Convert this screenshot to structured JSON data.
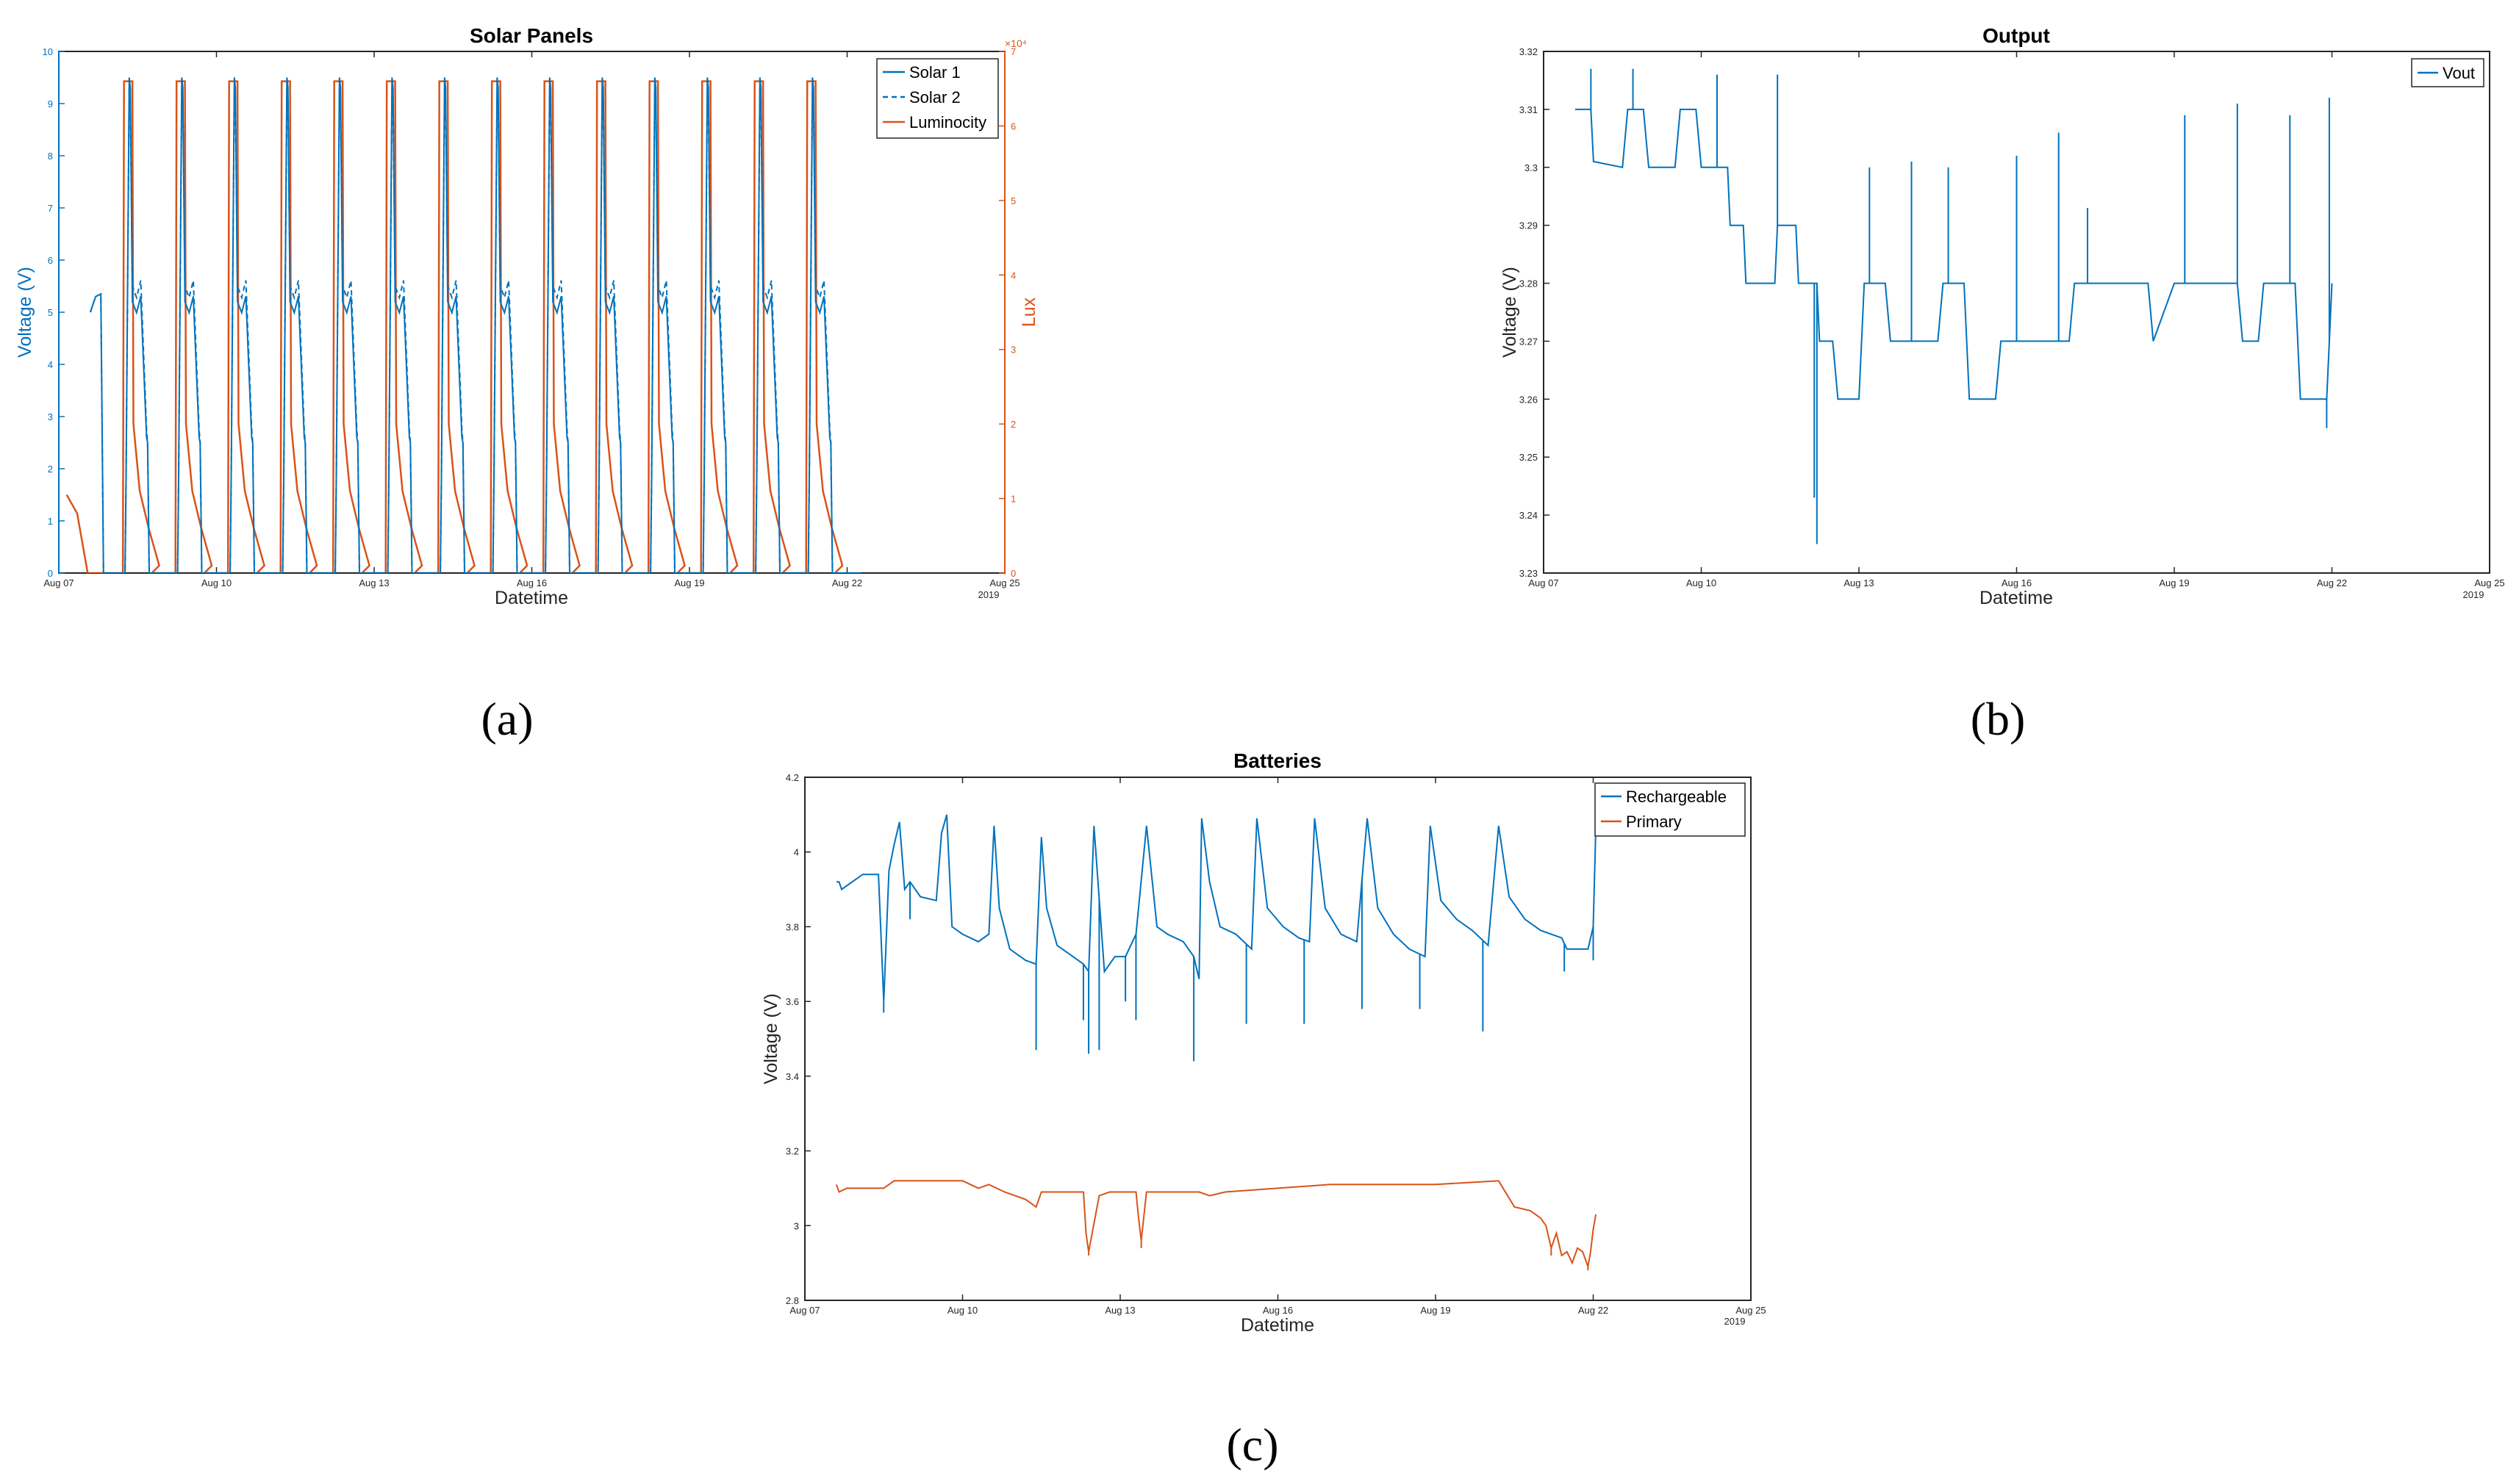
{
  "figure": {
    "panel_labels": [
      "(a)",
      "(b)",
      "(c)"
    ],
    "date_year": "2019"
  },
  "chart_data": [
    {
      "id": "solar",
      "type": "line",
      "title": "Solar Panels",
      "xlabel": "Datetime",
      "ylabel": "Voltage (V)",
      "y2label": "Lux",
      "y2_exponent": "×10⁴",
      "xlim": [
        0,
        18
      ],
      "x_ticks": [
        0,
        3,
        6,
        9,
        12,
        15,
        18
      ],
      "x_tick_labels": [
        "Aug 07",
        "Aug 10",
        "Aug 13",
        "Aug 16",
        "Aug 19",
        "Aug 22",
        "Aug 25"
      ],
      "x_year_label": "2019",
      "ylim": [
        0,
        10
      ],
      "y_ticks": [
        0,
        1,
        2,
        3,
        4,
        5,
        6,
        7,
        8,
        9,
        10
      ],
      "y2lim": [
        0,
        7
      ],
      "y2_ticks": [
        0,
        1,
        2,
        3,
        4,
        5,
        6,
        7
      ],
      "legend_location": "top-right",
      "colors": {
        "left_axis": "#0072BD",
        "right_axis": "#D95319"
      },
      "daily_pattern": {
        "days": [
          1,
          2,
          3,
          4,
          5,
          6,
          7,
          8,
          9,
          10,
          11,
          12,
          13,
          14
        ],
        "rise": 0.28,
        "peak": 0.36,
        "fall_to_zero": 0.72,
        "voltage_peak": 9.5,
        "voltage_shoulder": 5.3,
        "lux_peak": 6.6
      },
      "series": [
        {
          "name": "Solar 1",
          "axis": "left",
          "style": "solid",
          "color": "#0072BD",
          "x_range": [
            0.6,
            15.5
          ],
          "peak": 9.5,
          "night": 0
        },
        {
          "name": "Solar 2",
          "axis": "left",
          "style": "dashed",
          "color": "#0072BD",
          "x_range": [
            0.6,
            15.5
          ],
          "peak": 9.3,
          "night": 0
        },
        {
          "name": "Luminocity",
          "axis": "right",
          "style": "solid",
          "color": "#D95319",
          "x_range": [
            0.15,
            15.6
          ],
          "peak": 6.6,
          "night": 0
        }
      ]
    },
    {
      "id": "output",
      "type": "line",
      "title": "Output",
      "xlabel": "Datetime",
      "ylabel": "Voltage (V)",
      "xlim": [
        0,
        18
      ],
      "x_ticks": [
        0,
        3,
        6,
        9,
        12,
        15,
        18
      ],
      "x_tick_labels": [
        "Aug 07",
        "Aug 10",
        "Aug 13",
        "Aug 16",
        "Aug 19",
        "Aug 22",
        "Aug 25"
      ],
      "x_year_label": "2019",
      "ylim": [
        3.23,
        3.32
      ],
      "y_ticks": [
        3.23,
        3.24,
        3.25,
        3.26,
        3.27,
        3.28,
        3.29,
        3.3,
        3.31,
        3.32
      ],
      "y_tick_labels": [
        "3.23",
        "3.24",
        "3.25",
        "3.26",
        "3.27",
        "3.28",
        "3.29",
        "3.3",
        "3.31",
        "3.32"
      ],
      "legend_location": "top-right",
      "series": [
        {
          "name": "Vout",
          "color": "#0072BD",
          "points": [
            [
              0.6,
              3.31
            ],
            [
              0.9,
              3.31
            ],
            [
              0.95,
              3.301
            ],
            [
              1.5,
              3.3
            ],
            [
              1.6,
              3.31
            ],
            [
              1.9,
              3.31
            ],
            [
              2.0,
              3.3
            ],
            [
              2.5,
              3.3
            ],
            [
              2.6,
              3.31
            ],
            [
              2.9,
              3.31
            ],
            [
              3.0,
              3.3
            ],
            [
              3.5,
              3.3
            ],
            [
              3.55,
              3.29
            ],
            [
              3.8,
              3.29
            ],
            [
              3.85,
              3.28
            ],
            [
              4.4,
              3.28
            ],
            [
              4.45,
              3.29
            ],
            [
              4.8,
              3.29
            ],
            [
              4.85,
              3.28
            ],
            [
              5.2,
              3.28
            ],
            [
              5.25,
              3.27
            ],
            [
              5.5,
              3.27
            ],
            [
              5.6,
              3.26
            ],
            [
              6.0,
              3.26
            ],
            [
              6.1,
              3.28
            ],
            [
              6.5,
              3.28
            ],
            [
              6.6,
              3.27
            ],
            [
              7.5,
              3.27
            ],
            [
              7.6,
              3.28
            ],
            [
              8.0,
              3.28
            ],
            [
              8.1,
              3.26
            ],
            [
              8.6,
              3.26
            ],
            [
              8.7,
              3.27
            ],
            [
              9.0,
              3.27
            ],
            [
              9.2,
              3.27
            ],
            [
              10.0,
              3.27
            ],
            [
              10.1,
              3.28
            ],
            [
              11.5,
              3.28
            ],
            [
              11.6,
              3.27
            ],
            [
              12.0,
              3.28
            ],
            [
              13.2,
              3.28
            ],
            [
              13.3,
              3.27
            ],
            [
              13.6,
              3.27
            ],
            [
              13.7,
              3.28
            ],
            [
              14.3,
              3.28
            ],
            [
              14.4,
              3.26
            ],
            [
              14.9,
              3.26
            ],
            [
              15.0,
              3.28
            ]
          ],
          "spikes": [
            [
              0.9,
              3.317
            ],
            [
              1.7,
              3.317
            ],
            [
              2.4,
              3.3
            ],
            [
              3.3,
              3.316
            ],
            [
              4.45,
              3.316
            ],
            [
              5.15,
              3.243
            ],
            [
              5.2,
              3.235
            ],
            [
              6.2,
              3.3
            ],
            [
              7.0,
              3.301
            ],
            [
              7.7,
              3.3
            ],
            [
              9.0,
              3.302
            ],
            [
              9.8,
              3.306
            ],
            [
              10.35,
              3.293
            ],
            [
              12.2,
              3.309
            ],
            [
              13.2,
              3.311
            ],
            [
              14.2,
              3.309
            ],
            [
              14.95,
              3.312
            ],
            [
              14.9,
              3.255
            ]
          ]
        }
      ]
    },
    {
      "id": "batteries",
      "type": "line",
      "title": "Batteries",
      "xlabel": "Datetime",
      "ylabel": "Voltage (V)",
      "xlim": [
        0,
        18
      ],
      "x_ticks": [
        0,
        3,
        6,
        9,
        12,
        15,
        18
      ],
      "x_tick_labels": [
        "Aug 07",
        "Aug 10",
        "Aug 13",
        "Aug 16",
        "Aug 19",
        "Aug 22",
        "Aug 25"
      ],
      "x_year_label": "2019",
      "ylim": [
        2.8,
        4.2
      ],
      "y_ticks": [
        2.8,
        3.0,
        3.2,
        3.4,
        3.6,
        3.8,
        4.0,
        4.2
      ],
      "y_tick_labels": [
        "2.8",
        "3",
        "3.2",
        "3.4",
        "3.6",
        "3.8",
        "4",
        "4.2"
      ],
      "legend_location": "top-right",
      "series": [
        {
          "name": "Rechargeable",
          "color": "#0072BD",
          "points": [
            [
              0.6,
              3.92
            ],
            [
              0.65,
              3.92
            ],
            [
              0.7,
              3.9
            ],
            [
              1.1,
              3.94
            ],
            [
              1.4,
              3.94
            ],
            [
              1.5,
              3.6
            ],
            [
              1.6,
              3.95
            ],
            [
              1.7,
              4.02
            ],
            [
              1.8,
              4.08
            ],
            [
              1.9,
              3.9
            ],
            [
              2.0,
              3.92
            ],
            [
              2.2,
              3.88
            ],
            [
              2.5,
              3.87
            ],
            [
              2.6,
              4.05
            ],
            [
              2.7,
              4.1
            ],
            [
              2.8,
              3.8
            ],
            [
              3.0,
              3.78
            ],
            [
              3.3,
              3.76
            ],
            [
              3.5,
              3.78
            ],
            [
              3.6,
              4.07
            ],
            [
              3.7,
              3.85
            ],
            [
              3.9,
              3.74
            ],
            [
              4.2,
              3.71
            ],
            [
              4.4,
              3.7
            ],
            [
              4.5,
              4.04
            ],
            [
              4.6,
              3.85
            ],
            [
              4.8,
              3.75
            ],
            [
              5.1,
              3.72
            ],
            [
              5.3,
              3.7
            ],
            [
              5.4,
              3.68
            ],
            [
              5.5,
              4.07
            ],
            [
              5.7,
              3.68
            ],
            [
              5.9,
              3.72
            ],
            [
              6.1,
              3.72
            ],
            [
              6.3,
              3.78
            ],
            [
              6.5,
              4.07
            ],
            [
              6.7,
              3.8
            ],
            [
              6.9,
              3.78
            ],
            [
              7.2,
              3.76
            ],
            [
              7.4,
              3.72
            ],
            [
              7.5,
              3.66
            ],
            [
              7.55,
              4.09
            ],
            [
              7.7,
              3.92
            ],
            [
              7.9,
              3.8
            ],
            [
              8.2,
              3.78
            ],
            [
              8.5,
              3.74
            ],
            [
              8.6,
              4.09
            ],
            [
              8.8,
              3.85
            ],
            [
              9.1,
              3.8
            ],
            [
              9.4,
              3.77
            ],
            [
              9.6,
              3.76
            ],
            [
              9.7,
              4.09
            ],
            [
              9.9,
              3.85
            ],
            [
              10.2,
              3.78
            ],
            [
              10.5,
              3.76
            ],
            [
              10.7,
              4.09
            ],
            [
              10.9,
              3.85
            ],
            [
              11.2,
              3.78
            ],
            [
              11.5,
              3.74
            ],
            [
              11.8,
              3.72
            ],
            [
              11.9,
              4.07
            ],
            [
              12.1,
              3.87
            ],
            [
              12.4,
              3.82
            ],
            [
              12.7,
              3.79
            ],
            [
              13.0,
              3.75
            ],
            [
              13.2,
              4.07
            ],
            [
              13.4,
              3.88
            ],
            [
              13.7,
              3.82
            ],
            [
              14.0,
              3.79
            ],
            [
              14.4,
              3.77
            ],
            [
              14.5,
              3.74
            ],
            [
              14.6,
              3.74
            ],
            [
              14.9,
              3.74
            ],
            [
              15.0,
              3.8
            ],
            [
              15.05,
              4.07
            ]
          ],
          "spikes": [
            [
              1.5,
              3.57
            ],
            [
              2.0,
              3.82
            ],
            [
              4.4,
              3.47
            ],
            [
              5.3,
              3.55
            ],
            [
              5.4,
              3.46
            ],
            [
              5.6,
              3.47
            ],
            [
              6.1,
              3.6
            ],
            [
              6.3,
              3.55
            ],
            [
              7.4,
              3.44
            ],
            [
              8.4,
              3.54
            ],
            [
              9.5,
              3.54
            ],
            [
              10.6,
              3.58
            ],
            [
              11.7,
              3.58
            ],
            [
              12.9,
              3.52
            ],
            [
              14.45,
              3.68
            ],
            [
              15.0,
              3.71
            ]
          ]
        },
        {
          "name": "Primary",
          "color": "#D95319",
          "points": [
            [
              0.6,
              3.11
            ],
            [
              0.65,
              3.09
            ],
            [
              0.8,
              3.1
            ],
            [
              1.5,
              3.1
            ],
            [
              1.7,
              3.12
            ],
            [
              2.5,
              3.12
            ],
            [
              3.0,
              3.12
            ],
            [
              3.3,
              3.1
            ],
            [
              3.5,
              3.11
            ],
            [
              3.8,
              3.09
            ],
            [
              4.2,
              3.07
            ],
            [
              4.4,
              3.05
            ],
            [
              4.5,
              3.09
            ],
            [
              5.3,
              3.09
            ],
            [
              5.35,
              2.98
            ],
            [
              5.4,
              2.93
            ],
            [
              5.6,
              3.08
            ],
            [
              5.8,
              3.09
            ],
            [
              6.1,
              3.09
            ],
            [
              6.3,
              3.09
            ],
            [
              6.35,
              3.02
            ],
            [
              6.4,
              2.96
            ],
            [
              6.5,
              3.09
            ],
            [
              7.5,
              3.09
            ],
            [
              7.7,
              3.08
            ],
            [
              8.0,
              3.09
            ],
            [
              9.0,
              3.1
            ],
            [
              10.0,
              3.11
            ],
            [
              12.0,
              3.11
            ],
            [
              13.2,
              3.12
            ],
            [
              13.5,
              3.05
            ],
            [
              13.8,
              3.04
            ],
            [
              14.0,
              3.02
            ],
            [
              14.1,
              3.0
            ],
            [
              14.2,
              2.94
            ],
            [
              14.3,
              2.98
            ],
            [
              14.4,
              2.92
            ],
            [
              14.5,
              2.93
            ],
            [
              14.6,
              2.9
            ],
            [
              14.7,
              2.94
            ],
            [
              14.8,
              2.93
            ],
            [
              14.9,
              2.89
            ],
            [
              14.95,
              2.93
            ],
            [
              15.0,
              2.99
            ],
            [
              15.05,
              3.03
            ]
          ],
          "spikes": [
            [
              5.4,
              2.92
            ],
            [
              6.4,
              2.94
            ],
            [
              14.2,
              2.92
            ],
            [
              14.9,
              2.88
            ]
          ]
        }
      ]
    }
  ]
}
